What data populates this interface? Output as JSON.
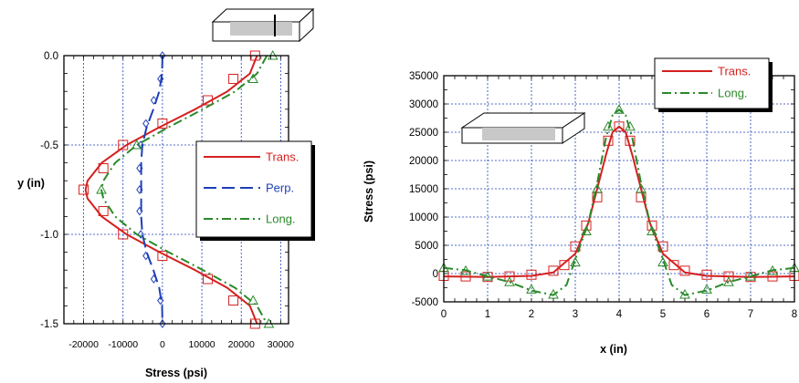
{
  "chart_data": [
    {
      "type": "line",
      "orientation": "vertical-profile",
      "xlabel": "Stress   (psi)",
      "ylabel": "y  (in)",
      "xlim": [
        -25000,
        32000
      ],
      "ylim": [
        -1.5,
        0.0
      ],
      "x_ticks": [
        -20000,
        -10000,
        0,
        10000,
        20000,
        30000
      ],
      "x_tick_labels": [
        "-20000",
        "-10000",
        "0",
        "10000",
        "20000",
        "30000"
      ],
      "y_ticks": [
        0.0,
        -0.5,
        -1.0,
        -1.5
      ],
      "y_tick_labels": [
        "0.0",
        "-0.5",
        "-1.0",
        "-1.5"
      ],
      "grid": true,
      "legend_position": "right",
      "series": [
        {
          "name": "Trans.",
          "color": "#d42020",
          "line": "solid",
          "marker": "square",
          "curve": [
            {
              "x": 24000,
              "y": 0.0
            },
            {
              "x": 22200,
              "y": -0.1
            },
            {
              "x": 16500,
              "y": -0.2
            },
            {
              "x": 8300,
              "y": -0.3
            },
            {
              "x": -700,
              "y": -0.4
            },
            {
              "x": -9100,
              "y": -0.5
            },
            {
              "x": -15400,
              "y": -0.6
            },
            {
              "x": -19000,
              "y": -0.7
            },
            {
              "x": -19500,
              "y": -0.75
            },
            {
              "x": -19000,
              "y": -0.8
            },
            {
              "x": -15400,
              "y": -0.9
            },
            {
              "x": -9100,
              "y": -1.0
            },
            {
              "x": -700,
              "y": -1.1
            },
            {
              "x": 8300,
              "y": -1.2
            },
            {
              "x": 16500,
              "y": -1.3
            },
            {
              "x": 22200,
              "y": -1.4
            },
            {
              "x": 24000,
              "y": -1.5
            }
          ],
          "markers": [
            {
              "x": 23500,
              "y": 0.0
            },
            {
              "x": 18000,
              "y": -0.13
            },
            {
              "x": 11500,
              "y": -0.25
            },
            {
              "x": 0,
              "y": -0.38
            },
            {
              "x": -10000,
              "y": -0.5
            },
            {
              "x": -15000,
              "y": -0.63
            },
            {
              "x": -20000,
              "y": -0.75
            },
            {
              "x": -15000,
              "y": -0.87
            },
            {
              "x": -10000,
              "y": -1.0
            },
            {
              "x": 0,
              "y": -1.12
            },
            {
              "x": 11500,
              "y": -1.25
            },
            {
              "x": 18000,
              "y": -1.37
            },
            {
              "x": 23500,
              "y": -1.5
            }
          ]
        },
        {
          "name": "Perp.",
          "color": "#1f3fb8",
          "line": "dashed",
          "marker": "diamond",
          "curve": [
            {
              "x": 0,
              "y": 0.0
            },
            {
              "x": -100,
              "y": -0.1
            },
            {
              "x": -800,
              "y": -0.2
            },
            {
              "x": -2300,
              "y": -0.3
            },
            {
              "x": -4000,
              "y": -0.4
            },
            {
              "x": -5100,
              "y": -0.5
            },
            {
              "x": -5400,
              "y": -0.6
            },
            {
              "x": -5400,
              "y": -0.75
            },
            {
              "x": -5400,
              "y": -0.9
            },
            {
              "x": -5100,
              "y": -1.0
            },
            {
              "x": -4000,
              "y": -1.1
            },
            {
              "x": -2300,
              "y": -1.2
            },
            {
              "x": -800,
              "y": -1.3
            },
            {
              "x": -100,
              "y": -1.4
            },
            {
              "x": 0,
              "y": -1.5
            }
          ],
          "markers": [
            {
              "x": 0,
              "y": 0.0
            },
            {
              "x": -500,
              "y": -0.13
            },
            {
              "x": -2200,
              "y": -0.25
            },
            {
              "x": -4200,
              "y": -0.38
            },
            {
              "x": -5500,
              "y": -0.5
            },
            {
              "x": -5800,
              "y": -0.63
            },
            {
              "x": -5800,
              "y": -0.75
            },
            {
              "x": -5800,
              "y": -0.87
            },
            {
              "x": -5500,
              "y": -1.0
            },
            {
              "x": -4200,
              "y": -1.12
            },
            {
              "x": -2200,
              "y": -1.25
            },
            {
              "x": -500,
              "y": -1.37
            },
            {
              "x": 0,
              "y": -1.5
            }
          ]
        },
        {
          "name": "Long.",
          "color": "#2a8a2a",
          "line": "dash-dot",
          "marker": "triangle",
          "curve": [
            {
              "x": 26500,
              "y": 0.0
            },
            {
              "x": 24000,
              "y": -0.1
            },
            {
              "x": 18500,
              "y": -0.2
            },
            {
              "x": 10300,
              "y": -0.3
            },
            {
              "x": 1600,
              "y": -0.4
            },
            {
              "x": -6500,
              "y": -0.5
            },
            {
              "x": -12000,
              "y": -0.6
            },
            {
              "x": -15000,
              "y": -0.7
            },
            {
              "x": -15500,
              "y": -0.75
            },
            {
              "x": -15000,
              "y": -0.8
            },
            {
              "x": -12000,
              "y": -0.9
            },
            {
              "x": -6500,
              "y": -1.0
            },
            {
              "x": 1600,
              "y": -1.1
            },
            {
              "x": 10300,
              "y": -1.2
            },
            {
              "x": 18500,
              "y": -1.3
            },
            {
              "x": 24000,
              "y": -1.4
            },
            {
              "x": 26500,
              "y": -1.5
            }
          ],
          "markers": [
            {
              "x": 28000,
              "y": 0.0
            },
            {
              "x": 23000,
              "y": -0.13
            },
            {
              "x": -6500,
              "y": -0.5
            },
            {
              "x": -15500,
              "y": -0.75
            },
            {
              "x": 23000,
              "y": -1.37
            },
            {
              "x": 27000,
              "y": -1.5
            }
          ]
        }
      ]
    },
    {
      "type": "line",
      "xlabel": "x  (in)",
      "ylabel": "Stress   (psi)",
      "xlim": [
        0,
        8
      ],
      "ylim": [
        -5000,
        35000
      ],
      "x_ticks": [
        0,
        1,
        2,
        3,
        4,
        5,
        6,
        7,
        8
      ],
      "x_tick_labels": [
        "0",
        "1",
        "2",
        "3",
        "4",
        "5",
        "6",
        "7",
        "8"
      ],
      "y_ticks": [
        -5000,
        0,
        5000,
        10000,
        15000,
        20000,
        25000,
        30000,
        35000
      ],
      "y_tick_labels": [
        "-5000",
        "0",
        "5000",
        "10000",
        "15000",
        "20000",
        "25000",
        "30000",
        "35000"
      ],
      "grid": true,
      "legend_position": "top-right",
      "series": [
        {
          "name": "Trans.",
          "color": "#d42020",
          "line": "solid",
          "marker": "square",
          "curve": [
            {
              "x": 0,
              "y": -500
            },
            {
              "x": 1,
              "y": -600
            },
            {
              "x": 2,
              "y": -400
            },
            {
              "x": 2.5,
              "y": 200
            },
            {
              "x": 3,
              "y": 3500
            },
            {
              "x": 3.3,
              "y": 9000
            },
            {
              "x": 3.5,
              "y": 15000
            },
            {
              "x": 3.7,
              "y": 21000
            },
            {
              "x": 3.85,
              "y": 25000
            },
            {
              "x": 4,
              "y": 26000
            },
            {
              "x": 4.15,
              "y": 25000
            },
            {
              "x": 4.3,
              "y": 21000
            },
            {
              "x": 4.5,
              "y": 15000
            },
            {
              "x": 4.7,
              "y": 9000
            },
            {
              "x": 5,
              "y": 3500
            },
            {
              "x": 5.5,
              "y": 200
            },
            {
              "x": 6,
              "y": -400
            },
            {
              "x": 7,
              "y": -600
            },
            {
              "x": 8,
              "y": -500
            }
          ],
          "markers": [
            {
              "x": 0,
              "y": -400
            },
            {
              "x": 0.5,
              "y": -500
            },
            {
              "x": 1,
              "y": -600
            },
            {
              "x": 1.5,
              "y": -500
            },
            {
              "x": 2,
              "y": -200
            },
            {
              "x": 2.5,
              "y": 500
            },
            {
              "x": 2.75,
              "y": 1500
            },
            {
              "x": 3,
              "y": 4800
            },
            {
              "x": 3.25,
              "y": 8500
            },
            {
              "x": 3.5,
              "y": 13500
            },
            {
              "x": 3.75,
              "y": 23500
            },
            {
              "x": 4,
              "y": 26000
            },
            {
              "x": 4.25,
              "y": 23500
            },
            {
              "x": 4.5,
              "y": 13500
            },
            {
              "x": 4.75,
              "y": 8500
            },
            {
              "x": 5,
              "y": 4800
            },
            {
              "x": 5.25,
              "y": 1500
            },
            {
              "x": 5.5,
              "y": 500
            },
            {
              "x": 6,
              "y": -200
            },
            {
              "x": 6.5,
              "y": -500
            },
            {
              "x": 7,
              "y": -600
            },
            {
              "x": 7.5,
              "y": -500
            },
            {
              "x": 8,
              "y": -400
            }
          ]
        },
        {
          "name": "Long.",
          "color": "#2a8a2a",
          "line": "dash-dot",
          "marker": "triangle",
          "curve": [
            {
              "x": 0,
              "y": 1000
            },
            {
              "x": 0.5,
              "y": 600
            },
            {
              "x": 1,
              "y": -500
            },
            {
              "x": 1.5,
              "y": -1500
            },
            {
              "x": 2,
              "y": -3000
            },
            {
              "x": 2.5,
              "y": -3800
            },
            {
              "x": 2.8,
              "y": -2000
            },
            {
              "x": 3,
              "y": 2500
            },
            {
              "x": 3.3,
              "y": 9000
            },
            {
              "x": 3.5,
              "y": 16000
            },
            {
              "x": 3.7,
              "y": 24000
            },
            {
              "x": 3.85,
              "y": 28000
            },
            {
              "x": 4,
              "y": 29000
            },
            {
              "x": 4.15,
              "y": 28000
            },
            {
              "x": 4.3,
              "y": 24000
            },
            {
              "x": 4.5,
              "y": 16000
            },
            {
              "x": 4.7,
              "y": 9000
            },
            {
              "x": 5,
              "y": 2500
            },
            {
              "x": 5.2,
              "y": -2000
            },
            {
              "x": 5.5,
              "y": -3800
            },
            {
              "x": 6,
              "y": -3000
            },
            {
              "x": 6.5,
              "y": -1500
            },
            {
              "x": 7,
              "y": -500
            },
            {
              "x": 7.5,
              "y": 600
            },
            {
              "x": 8,
              "y": 1000
            }
          ],
          "markers": [
            {
              "x": 0,
              "y": 1000
            },
            {
              "x": 0.5,
              "y": 500
            },
            {
              "x": 1,
              "y": -500
            },
            {
              "x": 1.5,
              "y": -1500
            },
            {
              "x": 2,
              "y": -2800
            },
            {
              "x": 2.5,
              "y": -3700
            },
            {
              "x": 3,
              "y": 2000
            },
            {
              "x": 3.25,
              "y": 7500
            },
            {
              "x": 3.5,
              "y": 15000
            },
            {
              "x": 3.75,
              "y": 26000
            },
            {
              "x": 4,
              "y": 29000
            },
            {
              "x": 4.25,
              "y": 26000
            },
            {
              "x": 4.5,
              "y": 15000
            },
            {
              "x": 4.75,
              "y": 7500
            },
            {
              "x": 5,
              "y": 2000
            },
            {
              "x": 5.5,
              "y": -3700
            },
            {
              "x": 6,
              "y": -2800
            },
            {
              "x": 6.5,
              "y": -1500
            },
            {
              "x": 7,
              "y": -500
            },
            {
              "x": 7.5,
              "y": 500
            },
            {
              "x": 8,
              "y": 1000
            }
          ]
        }
      ]
    }
  ]
}
